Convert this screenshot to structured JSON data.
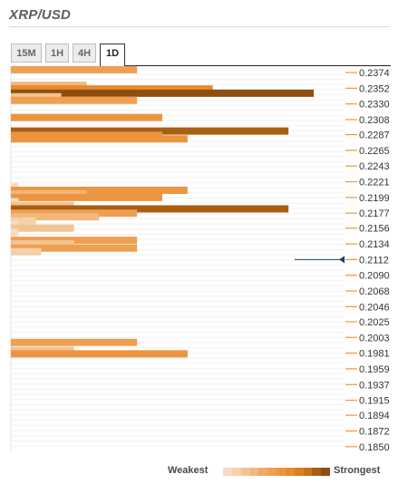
{
  "header": {
    "pair": "XRP/USD"
  },
  "tabs": [
    {
      "label": "15M",
      "active": false
    },
    {
      "label": "1H",
      "active": false
    },
    {
      "label": "4H",
      "active": false
    },
    {
      "label": "1D",
      "active": true
    }
  ],
  "legend": {
    "weakest": "Weakest",
    "strongest": "Strongest",
    "scale_colors": [
      "#f7dcc1",
      "#f5d0a9",
      "#f3c493",
      "#f1b77c",
      "#efaa66",
      "#eea052",
      "#ec9540",
      "#e88a2e",
      "#d9801f",
      "#c4731a",
      "#a85f14",
      "#8f4e10"
    ]
  },
  "chart_data": {
    "type": "bar",
    "orientation": "horizontal",
    "y_ticks": [
      "0.2374",
      "0.2352",
      "0.2330",
      "0.2308",
      "0.2287",
      "0.2265",
      "0.2243",
      "0.2221",
      "0.2199",
      "0.2177",
      "0.2156",
      "0.2134",
      "0.2112",
      "0.2090",
      "0.2068",
      "0.2046",
      "0.2025",
      "0.2003",
      "0.1981",
      "0.1959",
      "0.1937",
      "0.1915",
      "0.1894",
      "0.1872",
      "0.1850"
    ],
    "current_price": 0.2112,
    "bars": [
      {
        "level": 0.2378,
        "strength": 5
      },
      {
        "level": 0.2356,
        "strength": 3
      },
      {
        "level": 0.2351,
        "strength": 8
      },
      {
        "level": 0.2345,
        "strength": 12
      },
      {
        "level": 0.234,
        "strength": 2
      },
      {
        "level": 0.2335,
        "strength": 5
      },
      {
        "level": 0.2311,
        "strength": 6
      },
      {
        "level": 0.2292,
        "strength": 11
      },
      {
        "level": 0.2286,
        "strength": 6
      },
      {
        "level": 0.2281,
        "strength": 7
      },
      {
        "level": 0.2214,
        "strength": 0.3
      },
      {
        "level": 0.2209,
        "strength": 7
      },
      {
        "level": 0.2204,
        "strength": 3
      },
      {
        "level": 0.2199,
        "strength": 6
      },
      {
        "level": 0.2193,
        "strength": 0.3
      },
      {
        "level": 0.2188,
        "strength": 2.5
      },
      {
        "level": 0.2183,
        "strength": 11
      },
      {
        "level": 0.2177,
        "strength": 5
      },
      {
        "level": 0.2172,
        "strength": 3.5
      },
      {
        "level": 0.2166,
        "strength": 1
      },
      {
        "level": 0.2161,
        "strength": 0.3
      },
      {
        "level": 0.2156,
        "strength": 2.5
      },
      {
        "level": 0.215,
        "strength": 0.3
      },
      {
        "level": 0.2139,
        "strength": 5
      },
      {
        "level": 0.2134,
        "strength": 2.5
      },
      {
        "level": 0.2128,
        "strength": 5
      },
      {
        "level": 0.2123,
        "strength": 1.2
      },
      {
        "level": 0.1996,
        "strength": 5
      },
      {
        "level": 0.1985,
        "strength": 2.5
      },
      {
        "level": 0.198,
        "strength": 7
      }
    ],
    "strength_max": 12
  }
}
